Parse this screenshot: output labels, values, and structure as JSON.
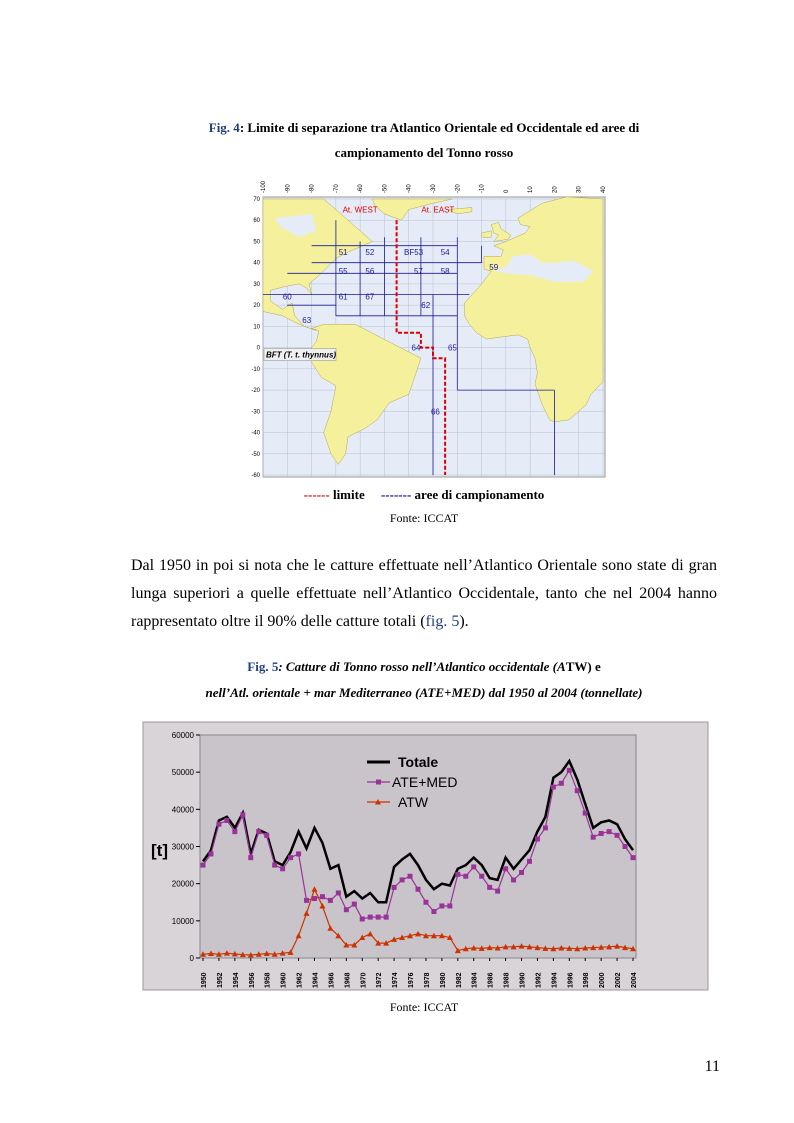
{
  "fig4": {
    "caption": {
      "label": "Fig. 4",
      "line1": ": Limite di separazione tra Atlantico Orientale ed Occidentale ed aree di",
      "line2": "campionamento del Tonno rosso"
    },
    "map": {
      "lon_ticks": [
        -100,
        -90,
        -80,
        -70,
        -60,
        -50,
        -40,
        -30,
        -20,
        -10,
        0,
        10,
        20,
        30,
        40
      ],
      "lat_ticks": [
        70,
        60,
        50,
        40,
        30,
        20,
        10,
        0,
        -10,
        -20,
        -30,
        -40,
        -50,
        -60
      ],
      "labels": [
        "At. WEST",
        "At. EAST",
        "51",
        "52",
        "BF53",
        "54",
        "55",
        "56",
        "57",
        "58",
        "59",
        "60",
        "61",
        "67",
        "62",
        "63",
        "64",
        "65",
        "66"
      ],
      "species": "BFT (T. t. thynnus)"
    },
    "legend": {
      "limit_dash": "------",
      "limit_label": "limite",
      "area_dash": "-------",
      "area_label": "aree di campionamento"
    },
    "source": "Fonte: ICCAT"
  },
  "paragraph": {
    "before": "Dal 1950 in poi si nota che le catture effettuate nell’Atlantico Orientale sono state di gran lunga superiori a quelle effettuate nell’Atlantico Occidentale, tanto che nel 2004 hanno rappresentato oltre il 90% delle catture totali (",
    "ref": "fig. 5",
    "after": ")."
  },
  "fig5": {
    "caption": {
      "label": "Fig. 5",
      "line1_italic": ": Catture di Tonno rosso nell’Atlantico occidentale (A",
      "line1_plain": "TW) e",
      "line2": "nell’Atl. orientale + mar Mediterraneo (ATE+MED) dal 1950 al 2004 (tonnellate)"
    },
    "source": "Fonte: ICCAT"
  },
  "chart_data": {
    "type": "line",
    "y_label": "[t]",
    "x": [
      1950,
      1951,
      1952,
      1953,
      1954,
      1955,
      1956,
      1957,
      1958,
      1959,
      1960,
      1961,
      1962,
      1963,
      1964,
      1965,
      1966,
      1967,
      1968,
      1969,
      1970,
      1971,
      1972,
      1973,
      1974,
      1975,
      1976,
      1977,
      1978,
      1979,
      1980,
      1981,
      1982,
      1983,
      1984,
      1985,
      1986,
      1987,
      1988,
      1989,
      1990,
      1991,
      1992,
      1993,
      1994,
      1995,
      1996,
      1997,
      1998,
      1999,
      2000,
      2001,
      2002,
      2003,
      2004
    ],
    "xlim": [
      1950,
      2004
    ],
    "xticks": [
      1950,
      1952,
      1954,
      1956,
      1958,
      1960,
      1962,
      1964,
      1966,
      1968,
      1970,
      1972,
      1974,
      1976,
      1978,
      1980,
      1982,
      1984,
      1986,
      1988,
      1990,
      1992,
      1994,
      1996,
      1998,
      2000,
      2002,
      2004
    ],
    "ylim": [
      0,
      60000
    ],
    "yticks": [
      0,
      10000,
      20000,
      30000,
      40000,
      50000,
      60000
    ],
    "grid": false,
    "series": [
      {
        "name": "Totale",
        "color": "#000000",
        "marker": "none",
        "values": [
          26000,
          29000,
          37000,
          38000,
          35000,
          39000,
          28000,
          34500,
          33500,
          26000,
          25000,
          28500,
          34000,
          29500,
          35000,
          31000,
          24000,
          25000,
          16500,
          18000,
          16000,
          17500,
          15000,
          15000,
          24500,
          26500,
          28000,
          25000,
          21000,
          18500,
          20000,
          19500,
          24000,
          25000,
          27000,
          25000,
          21500,
          21000,
          27000,
          24000,
          26500,
          29000,
          34000,
          38000,
          48500,
          50000,
          53000,
          48000,
          41500,
          35000,
          36500,
          37000,
          36000,
          32000,
          29000
        ]
      },
      {
        "name": "ATE+MED",
        "color": "#993399",
        "marker": "square",
        "values": [
          25000,
          28000,
          36000,
          37000,
          34000,
          38500,
          27000,
          34000,
          33000,
          25000,
          24000,
          27000,
          28000,
          15500,
          16000,
          16500,
          15500,
          17500,
          13000,
          14500,
          10500,
          11000,
          11000,
          11000,
          19000,
          21000,
          22000,
          18500,
          15000,
          12500,
          14000,
          14000,
          22500,
          22000,
          24500,
          22000,
          19000,
          18000,
          24000,
          21000,
          23000,
          26000,
          32000,
          35000,
          46000,
          47000,
          50500,
          45000,
          39000,
          32500,
          33500,
          34000,
          33000,
          30000,
          27000
        ]
      },
      {
        "name": "ATW",
        "color": "#cc3300",
        "marker": "triangle",
        "values": [
          1000,
          1200,
          1000,
          1300,
          1100,
          900,
          800,
          1000,
          1200,
          1000,
          1300,
          1500,
          6000,
          12000,
          18500,
          14000,
          8000,
          6000,
          3500,
          3500,
          5500,
          6500,
          4000,
          4000,
          5000,
          5500,
          6000,
          6500,
          6000,
          6000,
          6000,
          5500,
          2000,
          2500,
          2700,
          2600,
          2800,
          2700,
          3000,
          3000,
          3200,
          3000,
          2800,
          2600,
          2500,
          2700,
          2600,
          2500,
          2700,
          2800,
          2900,
          3000,
          3200,
          2800,
          2500
        ]
      }
    ]
  },
  "page_number": "11"
}
